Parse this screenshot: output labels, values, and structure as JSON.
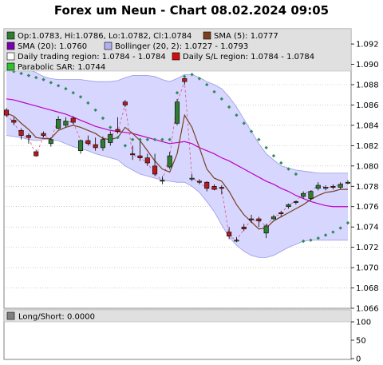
{
  "chart_data": {
    "type": "candlestick",
    "title": "Forex um Neun - Chart 08.02.2024 09:05",
    "colors": {
      "up": "#2e7d32",
      "down": "#b71c1c",
      "sma5": "#7b3f1e",
      "sma20": "#c000c0",
      "bollinger_fill": "#d6d6ff",
      "bollinger_line": "#9a9ae8",
      "trading_region": "#e8e8e8",
      "sl_line": "#e05080",
      "sar": "#2e8b57",
      "legend_bg": "#e0e0e0"
    },
    "legend": [
      {
        "label": "Op:1.0783, Hi:1.0786, Lo:1.0782, Cl:1.0784",
        "swatch": "#2e7d32"
      },
      {
        "label": "SMA (5): 1.0777",
        "swatch": "#7b3f1e"
      },
      {
        "label": "SMA (20): 1.0760",
        "swatch": "#7a00b0"
      },
      {
        "label": "Bollinger (20, 2): 1.0727 - 1.0793",
        "swatch": "#b0b0f0"
      },
      {
        "label": "Daily trading region: 1.0784 - 1.0784",
        "swatch": "#ffffff"
      },
      {
        "label": "Daily S/L region: 1.0784 - 1.0784",
        "swatch": "#d01010"
      },
      {
        "label": "Parabolic SAR: 1.0744",
        "swatch": "#30c030"
      }
    ],
    "price_axis": {
      "ylim": [
        1.066,
        1.0935
      ],
      "ticks": [
        "1.066",
        "1.068",
        "1.070",
        "1.072",
        "1.074",
        "1.076",
        "1.078",
        "1.080",
        "1.082",
        "1.084",
        "1.086",
        "1.088",
        "1.090",
        "1.092"
      ]
    },
    "candles": [
      [
        1.0855,
        1.0857,
        1.0848,
        1.085
      ],
      [
        1.0845,
        1.0848,
        1.084,
        1.0843
      ],
      [
        1.0835,
        1.0837,
        1.0826,
        1.083
      ],
      [
        1.083,
        1.0832,
        1.0822,
        1.0828
      ],
      [
        1.0814,
        1.0816,
        1.0809,
        1.081
      ],
      [
        1.0832,
        1.0834,
        1.0828,
        1.083
      ],
      [
        1.0822,
        1.0828,
        1.0819,
        1.0826
      ],
      [
        1.0837,
        1.0849,
        1.0836,
        1.0846
      ],
      [
        1.084,
        1.0848,
        1.0838,
        1.0844
      ],
      [
        1.0847,
        1.0849,
        1.0841,
        1.0843
      ],
      [
        1.0815,
        1.0826,
        1.0812,
        1.0825
      ],
      [
        1.0825,
        1.083,
        1.082,
        1.0822
      ],
      [
        1.0821,
        1.0828,
        1.0815,
        1.0818
      ],
      [
        1.0818,
        1.0829,
        1.0815,
        1.0826
      ],
      [
        1.0823,
        1.0834,
        1.082,
        1.0831
      ],
      [
        1.0836,
        1.0848,
        1.0832,
        1.0834
      ],
      [
        1.0863,
        1.0865,
        1.0858,
        1.086
      ],
      [
        1.0812,
        1.082,
        1.0806,
        1.0811
      ],
      [
        1.081,
        1.0826,
        1.0805,
        1.0808
      ],
      [
        1.0808,
        1.0812,
        1.08,
        1.0803
      ],
      [
        1.08,
        1.0812,
        1.079,
        1.0792
      ],
      [
        1.0785,
        1.079,
        1.0782,
        1.0786
      ],
      [
        1.0799,
        1.0814,
        1.0797,
        1.081
      ],
      [
        1.0842,
        1.0866,
        1.084,
        1.0863
      ],
      [
        1.0886,
        1.0889,
        1.088,
        1.0883
      ],
      [
        1.0787,
        1.0792,
        1.0785,
        1.0788
      ],
      [
        1.0785,
        1.0787,
        1.0782,
        1.0784
      ],
      [
        1.0784,
        1.0785,
        1.0775,
        1.0778
      ],
      [
        1.078,
        1.0782,
        1.0776,
        1.0777
      ],
      [
        1.0779,
        1.0781,
        1.0772,
        1.0778
      ],
      [
        1.0735,
        1.074,
        1.0728,
        1.0731
      ],
      [
        1.0727,
        1.073,
        1.0725,
        1.0727
      ],
      [
        1.074,
        1.0743,
        1.0736,
        1.0738
      ],
      [
        1.0748,
        1.0752,
        1.0744,
        1.0747
      ],
      [
        1.0748,
        1.075,
        1.074,
        1.0746
      ],
      [
        1.0734,
        1.0743,
        1.0729,
        1.0741
      ],
      [
        1.0748,
        1.0752,
        1.0747,
        1.075
      ],
      [
        1.0754,
        1.0756,
        1.075,
        1.0753
      ],
      [
        1.076,
        1.0763,
        1.0758,
        1.0762
      ],
      [
        1.0764,
        1.0766,
        1.0762,
        1.0765
      ],
      [
        1.077,
        1.0775,
        1.0768,
        1.0773
      ],
      [
        1.0768,
        1.0776,
        1.0766,
        1.0775
      ],
      [
        1.0778,
        1.0784,
        1.0776,
        1.0781
      ],
      [
        1.0778,
        1.0781,
        1.0776,
        1.0779
      ],
      [
        1.078,
        1.0782,
        1.0777,
        1.0779
      ],
      [
        1.0779,
        1.0784,
        1.0777,
        1.0782
      ],
      [
        1.0783,
        1.0786,
        1.0782,
        1.0784
      ]
    ],
    "sma5": [
      1.0852,
      1.0849,
      1.0842,
      1.0836,
      1.0828,
      1.0827,
      1.0827,
      1.0835,
      1.0838,
      1.084,
      1.0838,
      1.0835,
      1.0832,
      1.0827,
      1.0826,
      1.0828,
      1.0838,
      1.0832,
      1.0825,
      1.0815,
      1.0805,
      1.0797,
      1.0794,
      1.0812,
      1.085,
      1.0838,
      1.0818,
      1.0797,
      1.0788,
      1.0785,
      1.0775,
      1.0762,
      1.0752,
      1.0745,
      1.0738,
      1.0739,
      1.0746,
      1.075,
      1.0754,
      1.0758,
      1.0762,
      1.0767,
      1.0771,
      1.0774,
      1.0775,
      1.0777,
      1.0777
    ],
    "sma20": [
      1.0866,
      1.0865,
      1.0863,
      1.0861,
      1.0859,
      1.0857,
      1.0855,
      1.0853,
      1.0851,
      1.0848,
      1.0845,
      1.0842,
      1.0839,
      1.0837,
      1.0835,
      1.0834,
      1.0833,
      1.0832,
      1.083,
      1.0828,
      1.0826,
      1.0824,
      1.0822,
      1.0823,
      1.0824,
      1.0822,
      1.0818,
      1.0815,
      1.0812,
      1.0808,
      1.0805,
      1.0801,
      1.0797,
      1.0793,
      1.0789,
      1.0785,
      1.0782,
      1.0778,
      1.0775,
      1.0771,
      1.0768,
      1.0765,
      1.0763,
      1.0761,
      1.076,
      1.076,
      1.076
    ],
    "bollinger_upper": [
      1.0903,
      1.0901,
      1.0898,
      1.0895,
      1.0892,
      1.0888,
      1.0886,
      1.0885,
      1.0885,
      1.0885,
      1.0885,
      1.0884,
      1.0883,
      1.0883,
      1.0883,
      1.0884,
      1.0887,
      1.0889,
      1.0889,
      1.0889,
      1.0888,
      1.0885,
      1.0883,
      1.0886,
      1.089,
      1.089,
      1.0887,
      1.0883,
      1.088,
      1.0876,
      1.0868,
      1.0858,
      1.0846,
      1.0834,
      1.0822,
      1.0812,
      1.0806,
      1.08,
      1.0798,
      1.0796,
      1.0795,
      1.0794,
      1.0793,
      1.0793,
      1.0793,
      1.0793,
      1.0793
    ],
    "bollinger_lower": [
      1.083,
      1.0829,
      1.0828,
      1.0826,
      1.0825,
      1.0826,
      1.0826,
      1.0825,
      1.0822,
      1.0819,
      1.0817,
      1.0815,
      1.0812,
      1.081,
      1.0808,
      1.0806,
      1.08,
      1.0796,
      1.0792,
      1.079,
      1.0788,
      1.0786,
      1.0785,
      1.0784,
      1.0784,
      1.078,
      1.0774,
      1.0765,
      1.0755,
      1.0742,
      1.073,
      1.0722,
      1.0716,
      1.0712,
      1.071,
      1.071,
      1.0712,
      1.0716,
      1.072,
      1.0723,
      1.0726,
      1.0727,
      1.0727,
      1.0727,
      1.0727,
      1.0727,
      1.0727
    ],
    "sar": [
      1.0895,
      1.0893,
      1.0891,
      1.0889,
      1.0887,
      1.0885,
      1.0882,
      1.0879,
      1.0876,
      1.0872,
      1.0868,
      1.0862,
      1.0855,
      1.0847,
      1.0838,
      1.0828,
      1.082,
      1.0826,
      1.0826,
      1.0826,
      1.0826,
      1.0826,
      1.0826,
      1.0872,
      1.0888,
      1.089,
      1.0886,
      1.088,
      1.0873,
      1.0866,
      1.0858,
      1.085,
      1.0842,
      1.0834,
      1.0826,
      1.0818,
      1.081,
      1.0803,
      1.0797,
      1.0792,
      1.0726,
      1.0727,
      1.0729,
      1.0732,
      1.0735,
      1.0739,
      1.0744
    ],
    "indicator_panel": {
      "label": "Long/Short: 0.0000",
      "ylim": [
        0,
        100
      ],
      "ticks": [
        "0",
        "50",
        "100"
      ]
    }
  }
}
